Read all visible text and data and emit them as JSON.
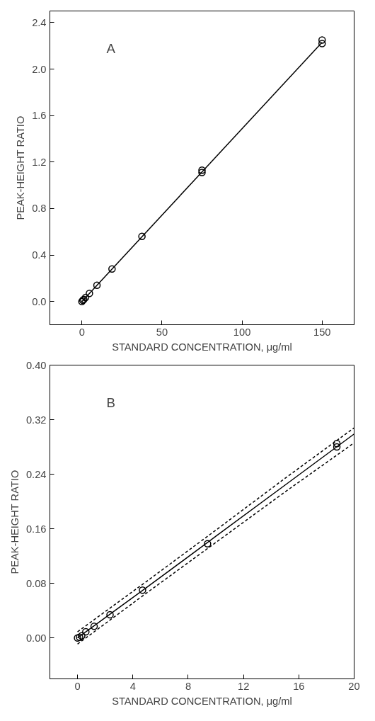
{
  "chart_data": [
    {
      "type": "scatter",
      "annotations": [
        "A"
      ],
      "xlabel": "STANDARD CONCENTRATION, μg/ml",
      "ylabel": "PEAK-HEIGHT RATIO",
      "xlim": [
        -20,
        170
      ],
      "ylim": [
        -0.2,
        2.5
      ],
      "xticks": [
        0,
        50,
        100,
        150
      ],
      "yticks": [
        {
          "value": 0,
          "label": "0.0"
        },
        {
          "value": 0.4,
          "label": "0.4"
        },
        {
          "value": 0.8,
          "label": "0.8"
        },
        {
          "value": 1.2,
          "label": "1.2"
        },
        {
          "value": 1.6,
          "label": "1.6"
        },
        {
          "value": 2.0,
          "label": "2.0"
        },
        {
          "value": 2.4,
          "label": "2.4"
        }
      ],
      "grid": false,
      "marker": "circle",
      "series": [
        {
          "color": "#000000",
          "x": [
            0,
            0.6,
            1.2,
            2.3,
            4.7,
            9.4,
            18.8,
            37.5,
            75,
            75,
            150,
            150
          ],
          "values": [
            0,
            0.01,
            0.018,
            0.035,
            0.07,
            0.14,
            0.28,
            0.56,
            1.11,
            1.13,
            2.22,
            2.25
          ]
        },
        {
          "type": "line",
          "marker": "none",
          "color": "#000000",
          "line_style": "solid",
          "x": [
            0,
            150
          ],
          "values": [
            0,
            2.23
          ]
        }
      ]
    },
    {
      "type": "scatter",
      "annotations": [
        "B"
      ],
      "xlabel": "STANDARD CONCENTRATION, μg/ml",
      "ylabel": "PEAK-HEIGHT RATIO",
      "xlim": [
        -2,
        20
      ],
      "ylim": [
        -0.06,
        0.4
      ],
      "xticks": [
        0,
        4,
        8,
        12,
        16,
        20
      ],
      "yticks": [
        {
          "value": 0,
          "label": "0.00"
        },
        {
          "value": 0.08,
          "label": "0.08"
        },
        {
          "value": 0.16,
          "label": "0.16"
        },
        {
          "value": 0.24,
          "label": "0.24"
        },
        {
          "value": 0.32,
          "label": "0.32"
        },
        {
          "value": 0.4,
          "label": "0.40"
        }
      ],
      "grid": false,
      "marker": "circle",
      "series": [
        {
          "color": "#000000",
          "x": [
            0,
            0.15,
            0.3,
            0.6,
            1.2,
            2.35,
            4.7,
            9.4,
            18.75,
            18.75
          ],
          "values": [
            0,
            0.001,
            0.003,
            0.009,
            0.017,
            0.034,
            0.07,
            0.138,
            0.28,
            0.285
          ]
        },
        {
          "type": "line",
          "marker": "none",
          "color": "#000000",
          "line_style": "solid",
          "x": [
            0,
            5,
            10,
            15,
            20
          ],
          "values": [
            0,
            0.074,
            0.149,
            0.224,
            0.299
          ]
        },
        {
          "type": "line",
          "marker": "none",
          "color": "#000000",
          "line_style": "dashed",
          "x": [
            0,
            5,
            10,
            15,
            20
          ],
          "values": [
            0.009,
            0.083,
            0.158,
            0.234,
            0.308
          ]
        },
        {
          "type": "line",
          "marker": "none",
          "color": "#000000",
          "line_style": "dashed",
          "x": [
            0,
            5,
            10,
            15,
            20
          ],
          "values": [
            -0.009,
            0.066,
            0.14,
            0.214,
            0.286
          ]
        }
      ]
    }
  ]
}
